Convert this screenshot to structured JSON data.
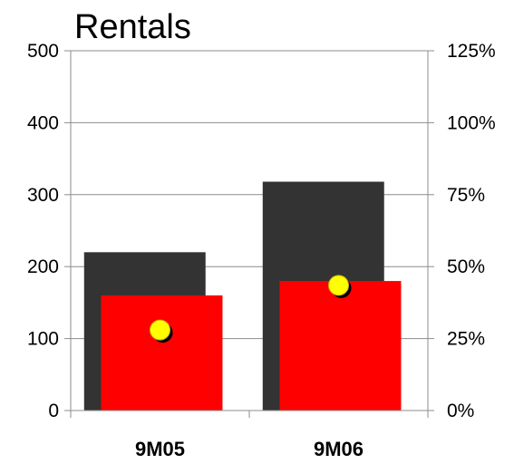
{
  "chart_data": {
    "type": "bar",
    "title": "Rentals",
    "categories": [
      "9M05",
      "9M06"
    ],
    "series": [
      {
        "values": [
          220,
          318
        ],
        "color": "#333333",
        "axis": "left"
      },
      {
        "values": [
          160,
          180
        ],
        "color": "#ff0000",
        "axis": "left"
      },
      {
        "values": [
          0.28,
          0.435
        ],
        "color": "#ffff00",
        "axis": "right",
        "marker": "circle"
      }
    ],
    "y_left": {
      "range": [
        0,
        500
      ],
      "ticks": [
        "0",
        "100",
        "200",
        "300",
        "400",
        "500"
      ]
    },
    "y_right": {
      "range": [
        0,
        1.25
      ],
      "ticks": [
        "0%",
        "25%",
        "50%",
        "75%",
        "100%",
        "125%"
      ]
    },
    "grid": true,
    "legend": "none"
  }
}
